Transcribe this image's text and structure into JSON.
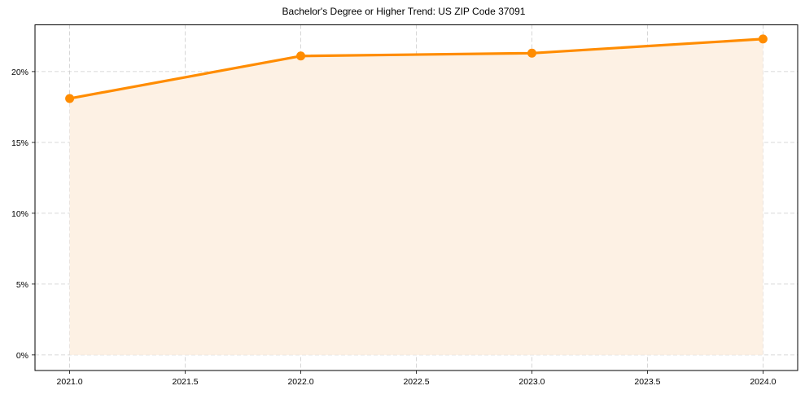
{
  "chart_data": {
    "type": "line",
    "title": "Bachelor's Degree or Higher Trend: US ZIP Code 37091",
    "xlabel": "",
    "ylabel": "",
    "x": [
      2021,
      2022,
      2023,
      2024
    ],
    "series": [
      {
        "name": "Bachelor's Degree or Higher",
        "values": [
          18.1,
          21.1,
          21.3,
          22.3
        ],
        "color": "#ff8c00",
        "fill_color": "#fdf1e4",
        "marker": "circle"
      }
    ],
    "xlim": [
      2020.85,
      2024.15
    ],
    "ylim": [
      -1.1,
      23.3
    ],
    "xticks": [
      2021.0,
      2021.5,
      2022.0,
      2022.5,
      2023.0,
      2023.5,
      2024.0
    ],
    "xtick_labels": [
      "2021.0",
      "2021.5",
      "2022.0",
      "2022.5",
      "2023.0",
      "2023.5",
      "2024.0"
    ],
    "yticks": [
      0,
      5,
      10,
      15,
      20
    ],
    "ytick_labels": [
      "0%",
      "5%",
      "10%",
      "15%",
      "20%"
    ],
    "grid": true,
    "grid_style": "dashed",
    "legend": null
  }
}
